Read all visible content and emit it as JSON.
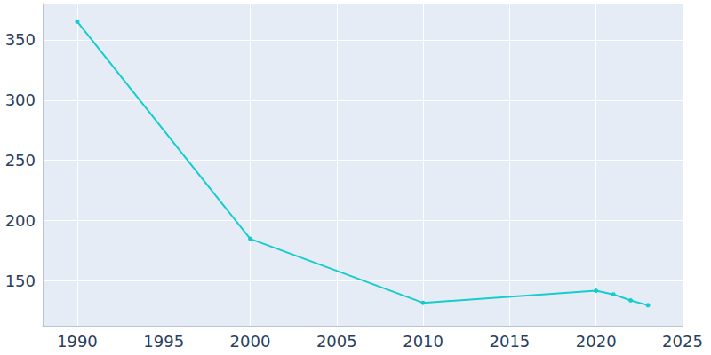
{
  "chart_data": {
    "type": "line",
    "x": [
      1990,
      2000,
      2010,
      2020,
      2021,
      2022,
      2023
    ],
    "values": [
      365,
      185,
      132,
      142,
      139,
      134,
      130
    ],
    "color": "#17cccc",
    "marker": "circle",
    "xlim": [
      1988,
      2025
    ],
    "xticks": [
      1990,
      1995,
      2000,
      2005,
      2010,
      2015,
      2020,
      2025
    ],
    "ylim": [
      113,
      380
    ],
    "yticks": [
      150,
      200,
      250,
      300,
      350
    ],
    "grid": true
  }
}
